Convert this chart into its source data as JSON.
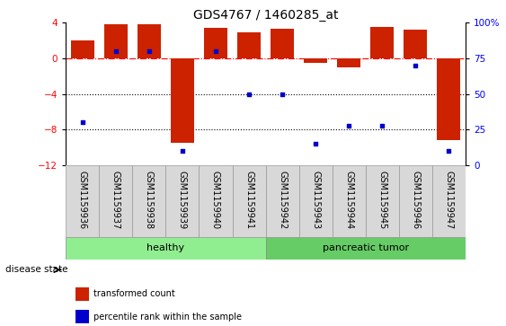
{
  "title": "GDS4767 / 1460285_at",
  "samples": [
    "GSM1159936",
    "GSM1159937",
    "GSM1159938",
    "GSM1159939",
    "GSM1159940",
    "GSM1159941",
    "GSM1159942",
    "GSM1159943",
    "GSM1159944",
    "GSM1159945",
    "GSM1159946",
    "GSM1159947"
  ],
  "transformed_count": [
    2.0,
    3.8,
    3.8,
    -9.5,
    3.4,
    2.9,
    3.3,
    -0.5,
    -1.0,
    3.5,
    3.2,
    -9.2
  ],
  "percentile_rank": [
    30,
    80,
    80,
    10,
    80,
    50,
    50,
    15,
    28,
    28,
    70,
    10
  ],
  "healthy_count": 6,
  "healthy_color": "#90EE90",
  "tumor_color": "#66CC66",
  "bar_color": "#CC2200",
  "dot_color": "#0000CC",
  "ylim_left": [
    -12,
    4
  ],
  "ylim_right": [
    0,
    100
  ],
  "yticks_left": [
    4,
    0,
    -4,
    -8,
    -12
  ],
  "yticks_right": [
    100,
    75,
    50,
    25,
    0
  ],
  "hline_y": [
    0,
    -4,
    -8
  ],
  "hline_styles": [
    "dashdot",
    "dotted",
    "dotted"
  ],
  "hline_colors": [
    "red",
    "black",
    "black"
  ],
  "label_fontsize": 7,
  "group_fontsize": 8,
  "title_fontsize": 10
}
